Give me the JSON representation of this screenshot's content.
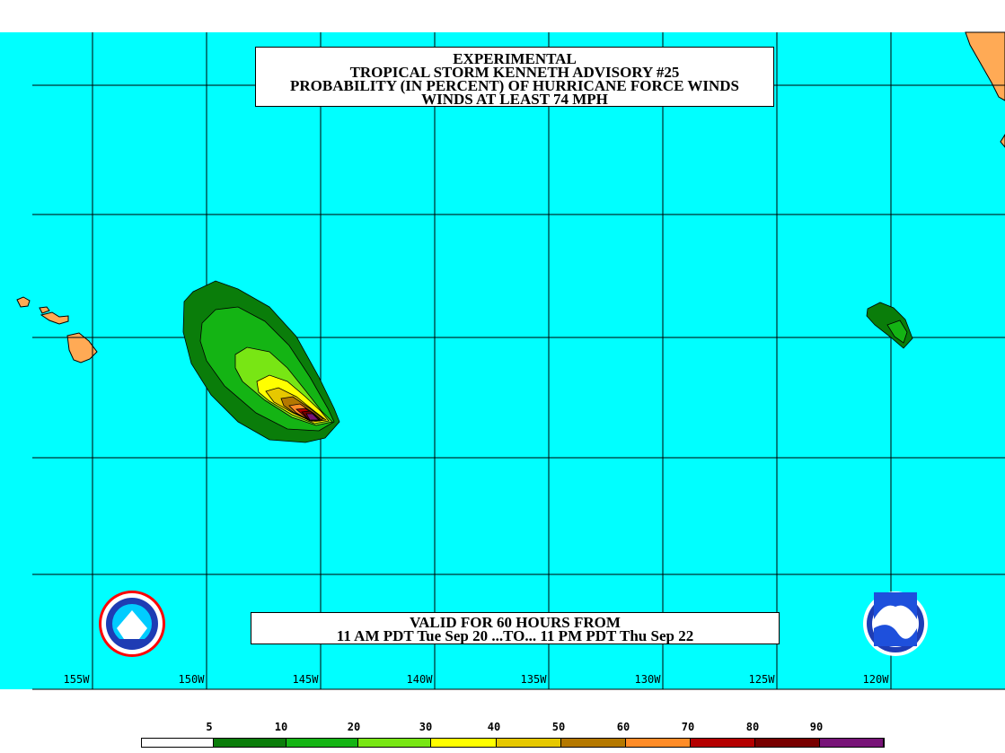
{
  "title": {
    "line1": "EXPERIMENTAL",
    "line2": "TROPICAL STORM KENNETH ADVISORY #25",
    "line3": "PROBABILITY (IN PERCENT) OF HURRICANE FORCE WINDS",
    "line4": "WINDS AT LEAST 74 MPH"
  },
  "valid": {
    "line1": "VALID FOR 60 HOURS FROM",
    "line2": "11 AM PDT Tue Sep 20 ...TO... 11 PM PDT Thu Sep 22"
  },
  "longitudes": [
    "155W",
    "150W",
    "145W",
    "140W",
    "135W",
    "130W",
    "125W",
    "120W"
  ],
  "legend": {
    "labels": [
      "5",
      "10",
      "20",
      "30",
      "40",
      "50",
      "60",
      "70",
      "80",
      "90"
    ],
    "colors": [
      "#ffffff",
      "#0a7d0a",
      "#14b414",
      "#78e614",
      "#ffff00",
      "#e6c800",
      "#b47800",
      "#ff8c28",
      "#b40000",
      "#780000",
      "#781478"
    ]
  },
  "colors": {
    "ocean": "#00ffff",
    "land": "#ffaa55",
    "grid": "#000000"
  },
  "logos": {
    "nws": "NATIONAL WEATHER SERVICE",
    "noaa": "NOAA"
  }
}
